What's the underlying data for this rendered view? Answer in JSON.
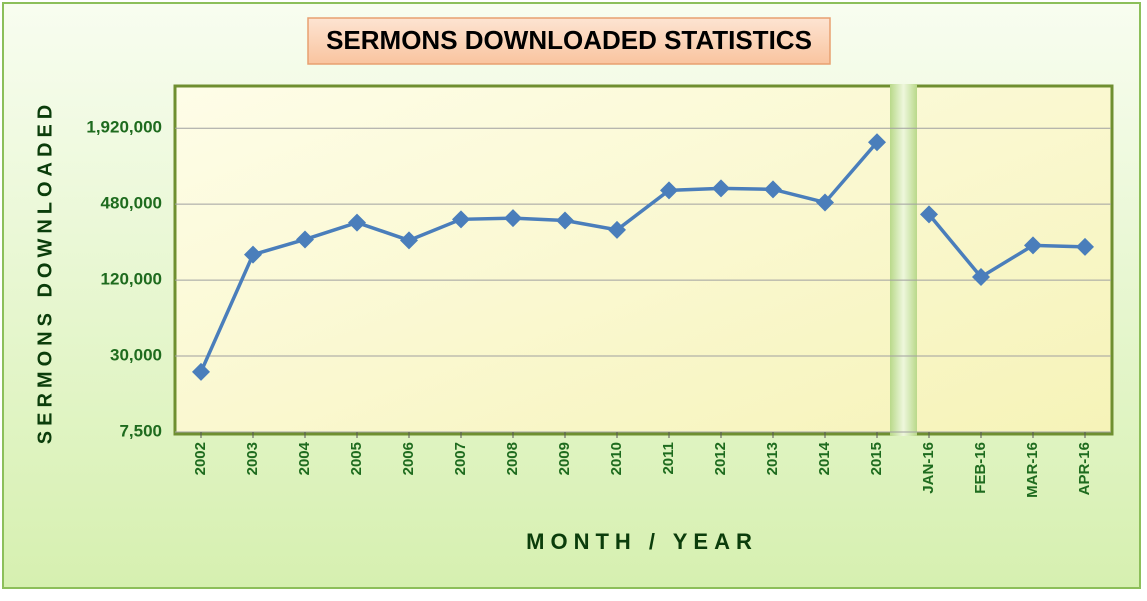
{
  "chart_data": {
    "type": "line",
    "title": "SERMONS DOWNLOADED STATISTICS",
    "x_label": "MONTH / YEAR",
    "y_label": "SERMONS DOWNLOADED",
    "categories": [
      "2002",
      "2003",
      "2004",
      "2005",
      "2006",
      "2007",
      "2008",
      "2009",
      "2010",
      "2011",
      "2012",
      "2013",
      "2014",
      "2015",
      "JAN-16",
      "FEB-16",
      "MAR-16",
      "APR-16"
    ],
    "series": [
      {
        "color": "#4a7ebb",
        "values": [
          22500,
          191000,
          252000,
          343000,
          248000,
          364000,
          372000,
          356000,
          300000,
          617000,
          640000,
          629000,
          495000,
          1486000,
          398000,
          127000,
          226000,
          220000
        ]
      }
    ],
    "ylim": [
      7500,
      4000000
    ],
    "log_scale": true,
    "yticks": [
      {
        "value": 7500,
        "label": "7,500"
      },
      {
        "value": 30000,
        "label": "30,000"
      },
      {
        "value": 120000,
        "label": "120,000"
      },
      {
        "value": 480000,
        "label": "480,000"
      },
      {
        "value": 1920000,
        "label": "1,920,000"
      }
    ],
    "grid": true
  }
}
